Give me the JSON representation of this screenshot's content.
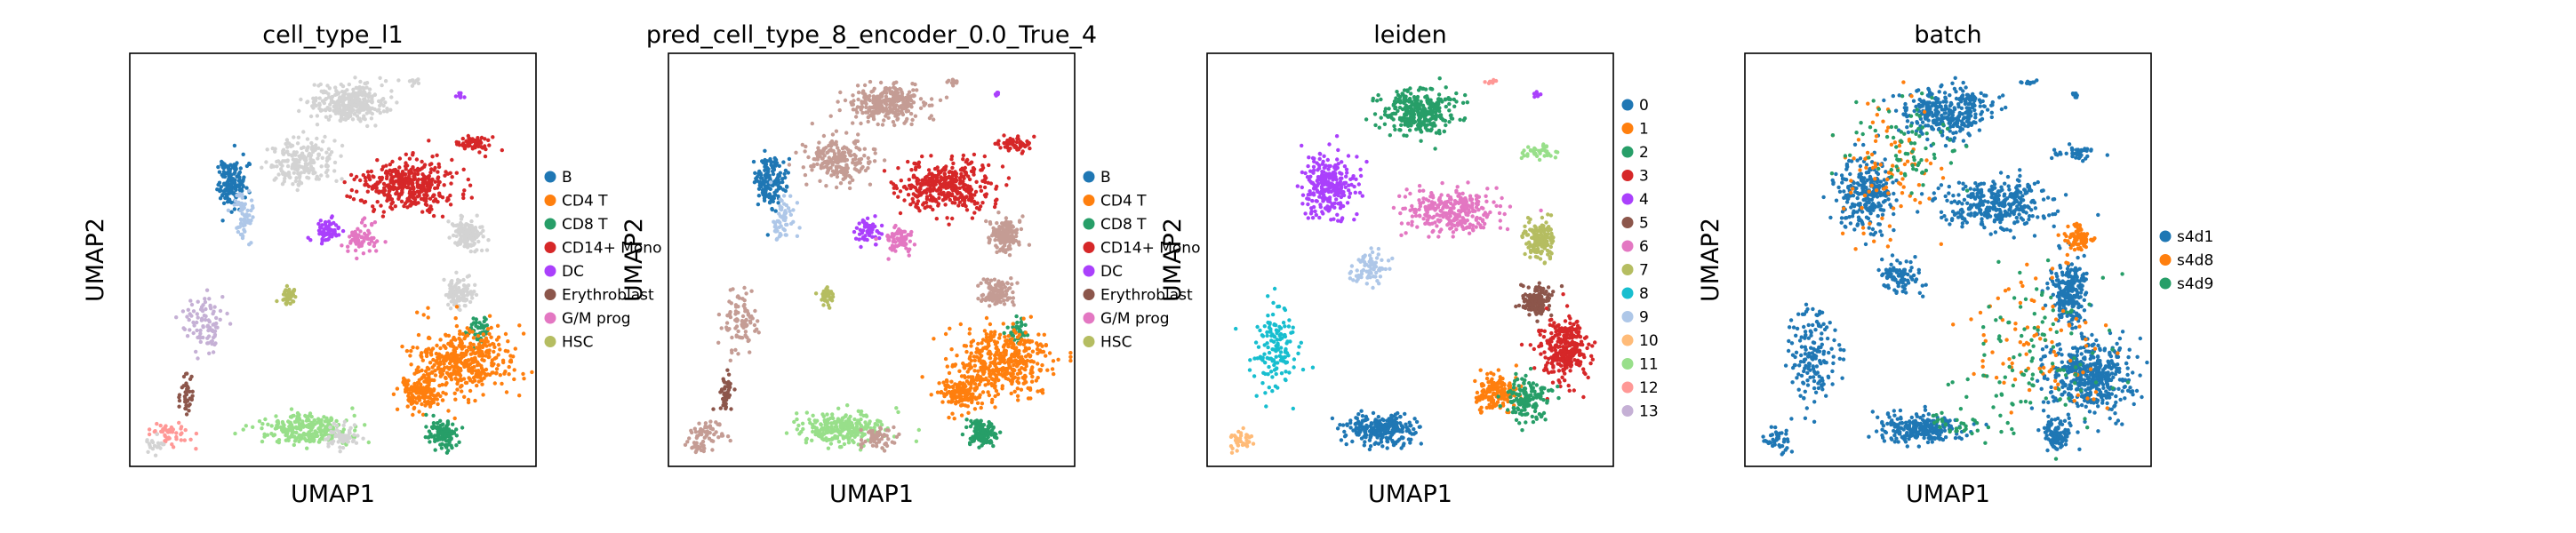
{
  "chart_data": [
    {
      "type": "scatter",
      "title": "cell_type_l1",
      "xlabel": "UMAP1",
      "ylabel": "UMAP2",
      "grid": false,
      "legend_position": "right",
      "legend": [
        {
          "label": "B",
          "color": "#1f77b4"
        },
        {
          "label": "CD4 T",
          "color": "#ff7f0e"
        },
        {
          "label": "CD8 T",
          "color": "#279e68"
        },
        {
          "label": "CD14+ Mono",
          "color": "#d62728"
        },
        {
          "label": "DC",
          "color": "#aa40fc"
        },
        {
          "label": "Erythroblast",
          "color": "#8c564b"
        },
        {
          "label": "G/M prog",
          "color": "#e377c2"
        },
        {
          "label": "HSC",
          "color": "#b5bd61"
        }
      ],
      "clusters": [
        {
          "c": "#d3d3d3",
          "cx": 0.54,
          "cy": 0.88,
          "rx": 0.1,
          "ry": 0.05,
          "n": 300
        },
        {
          "c": "#d3d3d3",
          "cx": 0.42,
          "cy": 0.74,
          "rx": 0.09,
          "ry": 0.06,
          "n": 200
        },
        {
          "c": "#1f77b4",
          "cx": 0.25,
          "cy": 0.69,
          "rx": 0.04,
          "ry": 0.07,
          "n": 160
        },
        {
          "c": "#aec7e8",
          "cx": 0.28,
          "cy": 0.6,
          "rx": 0.03,
          "ry": 0.06,
          "n": 60
        },
        {
          "c": "#d62728",
          "cx": 0.68,
          "cy": 0.68,
          "rx": 0.13,
          "ry": 0.07,
          "n": 380
        },
        {
          "c": "#d62728",
          "cx": 0.85,
          "cy": 0.78,
          "rx": 0.05,
          "ry": 0.02,
          "n": 60
        },
        {
          "c": "#aa40fc",
          "cx": 0.49,
          "cy": 0.57,
          "rx": 0.03,
          "ry": 0.03,
          "n": 60
        },
        {
          "c": "#e377c2",
          "cx": 0.57,
          "cy": 0.55,
          "rx": 0.04,
          "ry": 0.04,
          "n": 70
        },
        {
          "c": "#d3d3d3",
          "cx": 0.83,
          "cy": 0.56,
          "rx": 0.04,
          "ry": 0.04,
          "n": 150
        },
        {
          "c": "#d3d3d3",
          "cx": 0.81,
          "cy": 0.42,
          "rx": 0.04,
          "ry": 0.04,
          "n": 120
        },
        {
          "c": "#279e68",
          "cx": 0.86,
          "cy": 0.33,
          "rx": 0.03,
          "ry": 0.04,
          "n": 40
        },
        {
          "c": "#ff7f0e",
          "cx": 0.82,
          "cy": 0.25,
          "rx": 0.13,
          "ry": 0.09,
          "n": 420
        },
        {
          "c": "#ff7f0e",
          "cx": 0.72,
          "cy": 0.18,
          "rx": 0.06,
          "ry": 0.05,
          "n": 150
        },
        {
          "c": "#279e68",
          "cx": 0.77,
          "cy": 0.08,
          "rx": 0.04,
          "ry": 0.04,
          "n": 120
        },
        {
          "c": "#98df8a",
          "cx": 0.43,
          "cy": 0.09,
          "rx": 0.11,
          "ry": 0.04,
          "n": 260
        },
        {
          "c": "#d3d3d3",
          "cx": 0.52,
          "cy": 0.07,
          "rx": 0.05,
          "ry": 0.03,
          "n": 60
        },
        {
          "c": "#b5bd61",
          "cx": 0.39,
          "cy": 0.41,
          "rx": 0.02,
          "ry": 0.025,
          "n": 40
        },
        {
          "c": "#c5b0d5",
          "cx": 0.18,
          "cy": 0.35,
          "rx": 0.05,
          "ry": 0.08,
          "n": 90
        },
        {
          "c": "#8c564b",
          "cx": 0.14,
          "cy": 0.18,
          "rx": 0.02,
          "ry": 0.05,
          "n": 40
        },
        {
          "c": "#ff9896",
          "cx": 0.1,
          "cy": 0.08,
          "rx": 0.05,
          "ry": 0.03,
          "n": 50
        },
        {
          "c": "#d3d3d3",
          "cx": 0.07,
          "cy": 0.05,
          "rx": 0.03,
          "ry": 0.02,
          "n": 20
        },
        {
          "c": "#aa40fc",
          "cx": 0.81,
          "cy": 0.9,
          "rx": 0.01,
          "ry": 0.01,
          "n": 8
        },
        {
          "c": "#d3d3d3",
          "cx": 0.7,
          "cy": 0.93,
          "rx": 0.02,
          "ry": 0.01,
          "n": 10
        }
      ]
    },
    {
      "type": "scatter",
      "title": "pred_cell_type_8_encoder_0.0_True_4",
      "xlabel": "UMAP1",
      "ylabel": "UMAP2",
      "grid": false,
      "legend_position": "right",
      "legend": [
        {
          "label": "B",
          "color": "#1f77b4"
        },
        {
          "label": "CD4 T",
          "color": "#ff7f0e"
        },
        {
          "label": "CD8 T",
          "color": "#279e68"
        },
        {
          "label": "CD14+ Mono",
          "color": "#d62728"
        },
        {
          "label": "DC",
          "color": "#aa40fc"
        },
        {
          "label": "Erythroblast",
          "color": "#8c564b"
        },
        {
          "label": "G/M prog",
          "color": "#e377c2"
        },
        {
          "label": "HSC",
          "color": "#b5bd61"
        }
      ],
      "clusters": [
        {
          "c": "#c49c94",
          "cx": 0.54,
          "cy": 0.88,
          "rx": 0.1,
          "ry": 0.05,
          "n": 300
        },
        {
          "c": "#c49c94",
          "cx": 0.42,
          "cy": 0.74,
          "rx": 0.09,
          "ry": 0.06,
          "n": 200
        },
        {
          "c": "#1f77b4",
          "cx": 0.25,
          "cy": 0.69,
          "rx": 0.04,
          "ry": 0.07,
          "n": 160
        },
        {
          "c": "#aec7e8",
          "cx": 0.28,
          "cy": 0.6,
          "rx": 0.03,
          "ry": 0.06,
          "n": 60
        },
        {
          "c": "#d62728",
          "cx": 0.68,
          "cy": 0.68,
          "rx": 0.13,
          "ry": 0.07,
          "n": 380
        },
        {
          "c": "#d62728",
          "cx": 0.85,
          "cy": 0.78,
          "rx": 0.05,
          "ry": 0.02,
          "n": 60
        },
        {
          "c": "#aa40fc",
          "cx": 0.49,
          "cy": 0.57,
          "rx": 0.03,
          "ry": 0.03,
          "n": 60
        },
        {
          "c": "#e377c2",
          "cx": 0.57,
          "cy": 0.55,
          "rx": 0.04,
          "ry": 0.04,
          "n": 70
        },
        {
          "c": "#c49c94",
          "cx": 0.83,
          "cy": 0.56,
          "rx": 0.04,
          "ry": 0.04,
          "n": 150
        },
        {
          "c": "#c49c94",
          "cx": 0.81,
          "cy": 0.42,
          "rx": 0.04,
          "ry": 0.04,
          "n": 120
        },
        {
          "c": "#279e68",
          "cx": 0.86,
          "cy": 0.33,
          "rx": 0.03,
          "ry": 0.04,
          "n": 40
        },
        {
          "c": "#ff7f0e",
          "cx": 0.82,
          "cy": 0.25,
          "rx": 0.13,
          "ry": 0.09,
          "n": 420
        },
        {
          "c": "#ff7f0e",
          "cx": 0.72,
          "cy": 0.18,
          "rx": 0.06,
          "ry": 0.05,
          "n": 150
        },
        {
          "c": "#279e68",
          "cx": 0.77,
          "cy": 0.08,
          "rx": 0.04,
          "ry": 0.04,
          "n": 120
        },
        {
          "c": "#98df8a",
          "cx": 0.43,
          "cy": 0.09,
          "rx": 0.11,
          "ry": 0.04,
          "n": 260
        },
        {
          "c": "#c49c94",
          "cx": 0.52,
          "cy": 0.07,
          "rx": 0.05,
          "ry": 0.03,
          "n": 60
        },
        {
          "c": "#b5bd61",
          "cx": 0.39,
          "cy": 0.41,
          "rx": 0.02,
          "ry": 0.025,
          "n": 40
        },
        {
          "c": "#c49c94",
          "cx": 0.18,
          "cy": 0.35,
          "rx": 0.05,
          "ry": 0.08,
          "n": 90
        },
        {
          "c": "#8c564b",
          "cx": 0.14,
          "cy": 0.18,
          "rx": 0.02,
          "ry": 0.05,
          "n": 40
        },
        {
          "c": "#c49c94",
          "cx": 0.1,
          "cy": 0.08,
          "rx": 0.05,
          "ry": 0.03,
          "n": 50
        },
        {
          "c": "#c49c94",
          "cx": 0.07,
          "cy": 0.05,
          "rx": 0.03,
          "ry": 0.02,
          "n": 20
        },
        {
          "c": "#aa40fc",
          "cx": 0.81,
          "cy": 0.9,
          "rx": 0.01,
          "ry": 0.01,
          "n": 8
        },
        {
          "c": "#c49c94",
          "cx": 0.7,
          "cy": 0.93,
          "rx": 0.02,
          "ry": 0.01,
          "n": 10
        }
      ]
    },
    {
      "type": "scatter",
      "title": "leiden",
      "xlabel": "UMAP1",
      "ylabel": "UMAP2",
      "grid": false,
      "legend_position": "right",
      "legend": [
        {
          "label": "0",
          "color": "#1f77b4"
        },
        {
          "label": "1",
          "color": "#ff7f0e"
        },
        {
          "label": "2",
          "color": "#279e68"
        },
        {
          "label": "3",
          "color": "#d62728"
        },
        {
          "label": "4",
          "color": "#aa40fc"
        },
        {
          "label": "5",
          "color": "#8c564b"
        },
        {
          "label": "6",
          "color": "#e377c2"
        },
        {
          "label": "7",
          "color": "#b5bd61"
        },
        {
          "label": "8",
          "color": "#17becf"
        },
        {
          "label": "9",
          "color": "#aec7e8"
        },
        {
          "label": "10",
          "color": "#ffbb78"
        },
        {
          "label": "11",
          "color": "#98df8a"
        },
        {
          "label": "12",
          "color": "#ff9896"
        },
        {
          "label": "13",
          "color": "#c5b0d5"
        }
      ],
      "clusters": [
        {
          "c": "#279e68",
          "cx": 0.52,
          "cy": 0.86,
          "rx": 0.1,
          "ry": 0.06,
          "n": 320
        },
        {
          "c": "#aa40fc",
          "cx": 0.3,
          "cy": 0.68,
          "rx": 0.07,
          "ry": 0.09,
          "n": 260
        },
        {
          "c": "#e377c2",
          "cx": 0.6,
          "cy": 0.62,
          "rx": 0.14,
          "ry": 0.06,
          "n": 300
        },
        {
          "c": "#98df8a",
          "cx": 0.82,
          "cy": 0.76,
          "rx": 0.05,
          "ry": 0.02,
          "n": 40
        },
        {
          "c": "#aec7e8",
          "cx": 0.4,
          "cy": 0.48,
          "rx": 0.05,
          "ry": 0.04,
          "n": 80
        },
        {
          "c": "#b5bd61",
          "cx": 0.82,
          "cy": 0.55,
          "rx": 0.04,
          "ry": 0.05,
          "n": 160
        },
        {
          "c": "#8c564b",
          "cx": 0.81,
          "cy": 0.4,
          "rx": 0.04,
          "ry": 0.04,
          "n": 140
        },
        {
          "c": "#d62728",
          "cx": 0.88,
          "cy": 0.28,
          "rx": 0.06,
          "ry": 0.08,
          "n": 300
        },
        {
          "c": "#ff7f0e",
          "cx": 0.72,
          "cy": 0.18,
          "rx": 0.06,
          "ry": 0.05,
          "n": 170
        },
        {
          "c": "#279e68",
          "cx": 0.79,
          "cy": 0.16,
          "rx": 0.06,
          "ry": 0.06,
          "n": 150
        },
        {
          "c": "#1f77b4",
          "cx": 0.43,
          "cy": 0.09,
          "rx": 0.09,
          "ry": 0.04,
          "n": 260
        },
        {
          "c": "#17becf",
          "cx": 0.17,
          "cy": 0.28,
          "rx": 0.06,
          "ry": 0.12,
          "n": 140
        },
        {
          "c": "#ffbb78",
          "cx": 0.08,
          "cy": 0.06,
          "rx": 0.04,
          "ry": 0.03,
          "n": 40
        },
        {
          "c": "#ff9896",
          "cx": 0.7,
          "cy": 0.93,
          "rx": 0.02,
          "ry": 0.01,
          "n": 10
        },
        {
          "c": "#aa40fc",
          "cx": 0.81,
          "cy": 0.9,
          "rx": 0.01,
          "ry": 0.01,
          "n": 8
        }
      ]
    },
    {
      "type": "scatter",
      "title": "batch",
      "xlabel": "UMAP1",
      "ylabel": "UMAP2",
      "grid": false,
      "legend_position": "right",
      "legend": [
        {
          "label": "s4d1",
          "color": "#1f77b4"
        },
        {
          "label": "s4d8",
          "color": "#ff7f0e"
        },
        {
          "label": "s4d9",
          "color": "#279e68"
        }
      ],
      "clusters": [
        {
          "c": "#1f77b4",
          "cx": 0.5,
          "cy": 0.86,
          "rx": 0.12,
          "ry": 0.07,
          "n": 320
        },
        {
          "c": "#1f77b4",
          "cx": 0.3,
          "cy": 0.66,
          "rx": 0.08,
          "ry": 0.1,
          "n": 260
        },
        {
          "c": "#1f77b4",
          "cx": 0.62,
          "cy": 0.63,
          "rx": 0.16,
          "ry": 0.07,
          "n": 330
        },
        {
          "c": "#1f77b4",
          "cx": 0.82,
          "cy": 0.76,
          "rx": 0.05,
          "ry": 0.02,
          "n": 40
        },
        {
          "c": "#1f77b4",
          "cx": 0.38,
          "cy": 0.46,
          "rx": 0.06,
          "ry": 0.05,
          "n": 90
        },
        {
          "c": "#1f77b4",
          "cx": 0.8,
          "cy": 0.42,
          "rx": 0.05,
          "ry": 0.08,
          "n": 220
        },
        {
          "c": "#1f77b4",
          "cx": 0.85,
          "cy": 0.22,
          "rx": 0.12,
          "ry": 0.11,
          "n": 460
        },
        {
          "c": "#1f77b4",
          "cx": 0.77,
          "cy": 0.08,
          "rx": 0.04,
          "ry": 0.04,
          "n": 100
        },
        {
          "c": "#1f77b4",
          "cx": 0.43,
          "cy": 0.09,
          "rx": 0.11,
          "ry": 0.04,
          "n": 260
        },
        {
          "c": "#1f77b4",
          "cx": 0.17,
          "cy": 0.27,
          "rx": 0.07,
          "ry": 0.14,
          "n": 160
        },
        {
          "c": "#1f77b4",
          "cx": 0.08,
          "cy": 0.06,
          "rx": 0.04,
          "ry": 0.03,
          "n": 40
        },
        {
          "c": "#ff7f0e",
          "cx": 0.82,
          "cy": 0.55,
          "rx": 0.035,
          "ry": 0.035,
          "n": 80
        },
        {
          "c": "#ff7f0e",
          "cx": 0.35,
          "cy": 0.72,
          "rx": 0.12,
          "ry": 0.2,
          "n": 90
        },
        {
          "c": "#ff7f0e",
          "cx": 0.7,
          "cy": 0.3,
          "rx": 0.2,
          "ry": 0.2,
          "n": 90
        },
        {
          "c": "#279e68",
          "cx": 0.4,
          "cy": 0.78,
          "rx": 0.15,
          "ry": 0.12,
          "n": 80
        },
        {
          "c": "#279e68",
          "cx": 0.72,
          "cy": 0.25,
          "rx": 0.2,
          "ry": 0.2,
          "n": 110
        },
        {
          "c": "#279e68",
          "cx": 0.52,
          "cy": 0.1,
          "rx": 0.08,
          "ry": 0.03,
          "n": 30
        },
        {
          "c": "#1f77b4",
          "cx": 0.7,
          "cy": 0.93,
          "rx": 0.02,
          "ry": 0.01,
          "n": 10
        },
        {
          "c": "#1f77b4",
          "cx": 0.81,
          "cy": 0.9,
          "rx": 0.01,
          "ry": 0.01,
          "n": 8
        }
      ]
    }
  ]
}
